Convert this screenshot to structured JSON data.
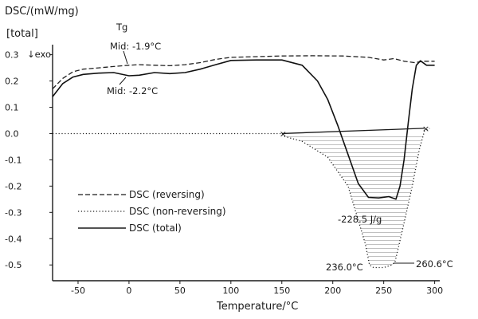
{
  "chart_data": {
    "type": "line",
    "title": "",
    "xlabel": "Temperature/°C",
    "ylabel": "DSC/(mW/mg)",
    "ylabel_tag": "[total]",
    "exo_label": "↓exo",
    "xlim": [
      -75,
      305
    ],
    "ylim": [
      -0.56,
      0.32
    ],
    "x_ticks": [
      -50,
      0,
      50,
      100,
      150,
      200,
      250,
      300
    ],
    "x_tick_labels": [
      "-50",
      "0",
      "50",
      "100",
      "150",
      "200",
      "250",
      "300"
    ],
    "y_ticks": [
      0.3,
      0.2,
      0.1,
      0.0,
      -0.1,
      -0.2,
      -0.3,
      -0.4,
      -0.5
    ],
    "y_tick_labels": [
      "0.3",
      "0.2",
      "0.1",
      "0.0",
      "-0.1",
      "-0.2",
      "-0.3",
      "-0.4",
      "-0.5"
    ],
    "grid": false,
    "legend_position": "lower-left",
    "series": [
      {
        "name": "DSC (reversing)",
        "style": "dashed",
        "color": "#222222",
        "x": [
          -75,
          -65,
          -55,
          -45,
          -30,
          -15,
          0,
          10,
          25,
          40,
          55,
          70,
          85,
          100,
          120,
          150,
          180,
          210,
          235,
          250,
          260,
          270,
          280,
          290,
          300
        ],
        "y": [
          0.17,
          0.21,
          0.235,
          0.245,
          0.25,
          0.255,
          0.26,
          0.262,
          0.26,
          0.258,
          0.262,
          0.27,
          0.282,
          0.29,
          0.292,
          0.295,
          0.296,
          0.295,
          0.29,
          0.28,
          0.285,
          0.275,
          0.27,
          0.275,
          0.275
        ]
      },
      {
        "name": "DSC (non-reversing)",
        "style": "dotted",
        "color": "#222222",
        "x": [
          -75,
          -30,
          0,
          50,
          100,
          150,
          152,
          170,
          195,
          215,
          225,
          232,
          236,
          240,
          250,
          258,
          261,
          264,
          270,
          278,
          285,
          290,
          295
        ],
        "y": [
          0.0,
          0.0,
          0.0,
          0.0,
          0.0,
          0.0,
          -0.01,
          -0.03,
          -0.09,
          -0.2,
          -0.33,
          -0.42,
          -0.5,
          -0.51,
          -0.51,
          -0.5,
          -0.49,
          -0.44,
          -0.34,
          -0.2,
          -0.06,
          0.01,
          0.02
        ]
      },
      {
        "name": "DSC (total)",
        "style": "solid",
        "color": "#111111",
        "x": [
          -75,
          -65,
          -55,
          -45,
          -30,
          -15,
          0,
          10,
          25,
          40,
          55,
          70,
          85,
          100,
          125,
          150,
          170,
          185,
          195,
          205,
          215,
          225,
          235,
          245,
          255,
          262,
          266,
          270,
          274,
          278,
          282,
          286,
          292,
          300
        ],
        "y": [
          0.14,
          0.19,
          0.215,
          0.225,
          0.23,
          0.232,
          0.22,
          0.222,
          0.232,
          0.228,
          0.232,
          0.245,
          0.262,
          0.278,
          0.28,
          0.28,
          0.26,
          0.2,
          0.13,
          0.03,
          -0.08,
          -0.19,
          -0.243,
          -0.245,
          -0.24,
          -0.25,
          -0.2,
          -0.1,
          0.04,
          0.17,
          0.26,
          0.277,
          0.26,
          0.26
        ]
      }
    ],
    "baseline": {
      "x": [
        150,
        290
      ],
      "y": [
        0.0,
        0.02
      ]
    },
    "peak_fill": {
      "from_x": 152,
      "to_x": 292
    },
    "annotations": {
      "tg_label": "Tg",
      "tg_mid_reversing": "Mid: -1.9°C",
      "tg_mid_total": "Mid: -2.2°C",
      "enthalpy": "-228.5 J/g",
      "onset": "236.0°C",
      "offset": "260.6°C"
    },
    "legend": [
      {
        "label": "DSC (reversing)",
        "style": "dashed"
      },
      {
        "label": "DSC (non-reversing)",
        "style": "dotted"
      },
      {
        "label": "DSC (total)",
        "style": "solid"
      }
    ]
  }
}
